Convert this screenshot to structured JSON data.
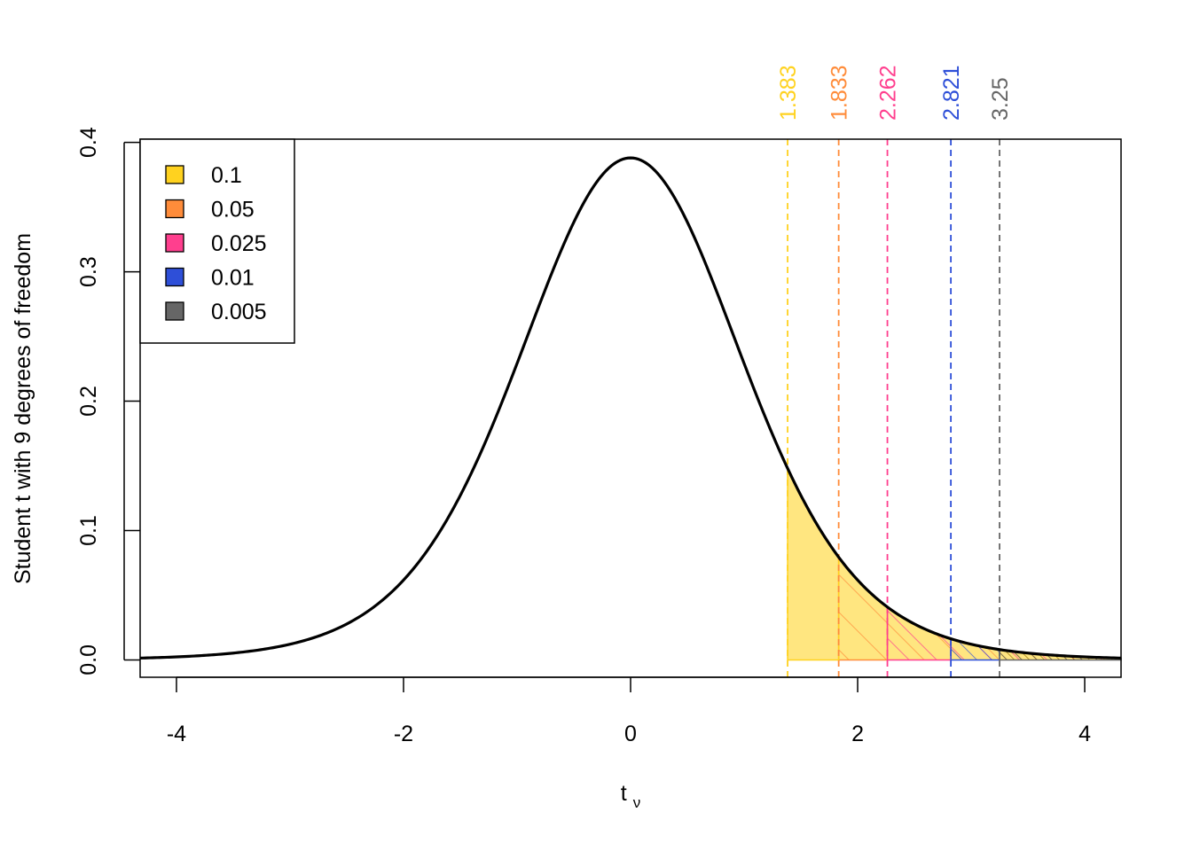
{
  "chart_data": {
    "type": "area",
    "distribution": "Student t",
    "degrees_of_freedom": 9,
    "xlabel_main": "t",
    "xlabel_sub": "ν",
    "ylabel": "Student t with 9 degrees of freedom",
    "xlim": [
      -4.32,
      4.32
    ],
    "ylim": [
      -0.0134,
      0.4025
    ],
    "x_ticks": [
      -4,
      -2,
      0,
      2,
      4
    ],
    "x_tick_labels": [
      "-4",
      "-2",
      "0",
      "2",
      "4"
    ],
    "y_ticks": [
      0.0,
      0.1,
      0.2,
      0.3,
      0.4
    ],
    "y_tick_labels": [
      "0.0",
      "0.1",
      "0.2",
      "0.3",
      "0.4"
    ],
    "legend_position": "top-left",
    "critical_values": [
      {
        "alpha": "0.1",
        "t": 1.383,
        "label": "1.383",
        "color": "#FFD21F"
      },
      {
        "alpha": "0.05",
        "t": 1.833,
        "label": "1.833",
        "color": "#FF8C3A"
      },
      {
        "alpha": "0.025",
        "t": 2.262,
        "label": "2.262",
        "color": "#FF3F8E"
      },
      {
        "alpha": "0.01",
        "t": 2.821,
        "label": "2.821",
        "color": "#2E4FD8"
      },
      {
        "alpha": "0.005",
        "t": 3.25,
        "label": "3.25",
        "color": "#666666"
      }
    ],
    "fill_color": "#FFE680",
    "curve_color": "#000000"
  }
}
